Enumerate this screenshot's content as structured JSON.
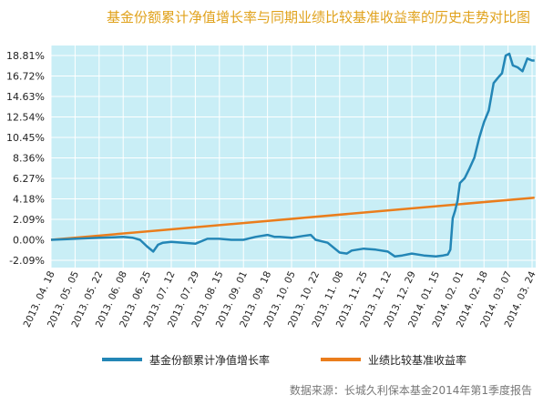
{
  "title": "基金份额累计净值增长率与同期业绩比较基准收益率的历史走势对比图",
  "source_note": "数据来源：长城久利保本基金2014年第1季度报告",
  "colors": {
    "fund": "#2386b6",
    "benchmark": "#ea7d1c",
    "plot_bg": "#c9eef6",
    "grid": "#ffffff",
    "title": "#e0a21c"
  },
  "chart_data": {
    "type": "line",
    "title": "基金份额累计净值增长率与同期业绩比较基准收益率的历史走势对比图",
    "xlabel": "",
    "ylabel": "",
    "grid": true,
    "legend_position": "bottom",
    "x_ticks": [
      "2013. 04. 18",
      "2013. 05. 05",
      "2013. 05. 22",
      "2013. 06. 08",
      "2013. 06. 25",
      "2013. 07. 12",
      "2013. 07. 29",
      "2013. 08. 15",
      "2013. 09. 01",
      "2013. 09. 18",
      "2013. 10. 05",
      "2013. 10. 22",
      "2013. 11. 08",
      "2013. 11. 25",
      "2013. 12. 12",
      "2013. 12. 29",
      "2014. 01. 15",
      "2014. 02. 01",
      "2014. 02. 18",
      "2014. 03. 07",
      "2014. 03. 24"
    ],
    "y_ticks": [
      "18.81%",
      "16.72%",
      "14.63%",
      "12.54%",
      "10.45%",
      "8.36%",
      "6.27%",
      "4.18%",
      "2.09%",
      "0.00%",
      "-2.09%"
    ],
    "ylim": [
      -2.09,
      18.81
    ],
    "series": [
      {
        "name": "基金份额累计净值增长率",
        "color": "#2386b6",
        "x": [
          0,
          1,
          2,
          3,
          3.4,
          3.7,
          4.0,
          4.25,
          4.45,
          4.65,
          5,
          5.5,
          6,
          6.5,
          6.8,
          7,
          7.5,
          8,
          8.5,
          9,
          9.3,
          9.5,
          10,
          10.5,
          10.8,
          11,
          11.5,
          12,
          12.3,
          12.5,
          13,
          13.5,
          14,
          14.3,
          14.6,
          15,
          15.5,
          16,
          16.3,
          16.5,
          16.6,
          16.7,
          16.8,
          16.9,
          17,
          17.2,
          17.4,
          17.6,
          17.8,
          17.9,
          18,
          18.2,
          18.4,
          18.6,
          18.75,
          18.9,
          19.05,
          19.2,
          19.4,
          19.6,
          19.8,
          20,
          20.1
        ],
        "values": [
          0.0,
          0.1,
          0.2,
          0.3,
          0.2,
          0.0,
          -0.7,
          -1.2,
          -0.5,
          -0.3,
          -0.2,
          -0.3,
          -0.4,
          0.1,
          0.1,
          0.1,
          0.0,
          0.0,
          0.3,
          0.5,
          0.3,
          0.3,
          0.2,
          0.4,
          0.5,
          0.0,
          -0.3,
          -1.3,
          -1.4,
          -1.1,
          -0.9,
          -1.0,
          -1.2,
          -1.7,
          -1.6,
          -1.4,
          -1.6,
          -1.7,
          -1.6,
          -1.5,
          -1.0,
          2.2,
          3.0,
          4.0,
          5.8,
          6.3,
          7.3,
          8.4,
          10.4,
          11.2,
          12.0,
          13.2,
          16.0,
          16.6,
          17.0,
          18.8,
          19.0,
          17.8,
          17.6,
          17.2,
          18.5,
          18.3,
          18.3
        ]
      },
      {
        "name": "业绩比较基准收益率",
        "color": "#ea7d1c",
        "x": [
          0,
          20.1
        ],
        "values": [
          0.0,
          4.3
        ]
      }
    ]
  }
}
